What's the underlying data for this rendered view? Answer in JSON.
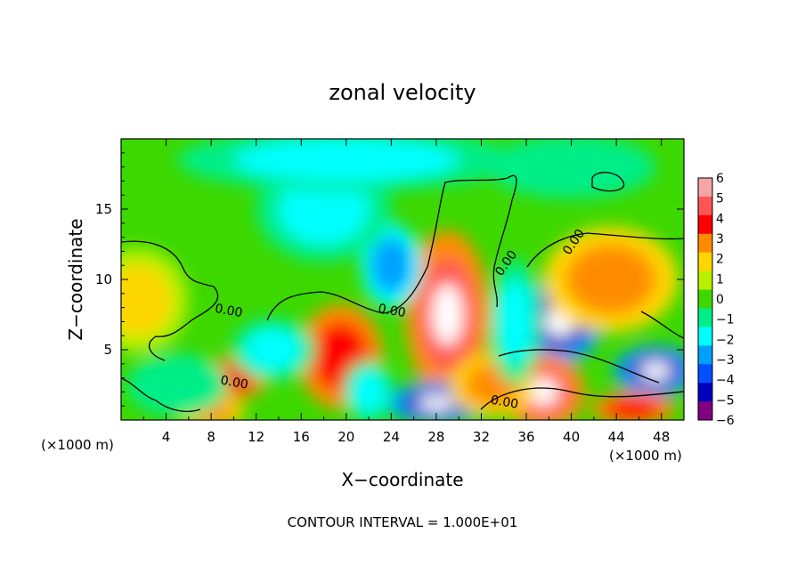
{
  "chart_data": {
    "type": "heatmap",
    "title": "zonal velocity",
    "xlabel": "X−coordinate",
    "ylabel": "Z−coordinate",
    "x_unit_left": "(×1000 m)",
    "x_unit_right": "(×1000 m)",
    "footer": "CONTOUR INTERVAL = 1.000E+01",
    "xlim": [
      0,
      50
    ],
    "ylim": [
      0,
      20
    ],
    "x_ticks": [
      "4",
      "8",
      "12",
      "16",
      "20",
      "24",
      "28",
      "32",
      "36",
      "40",
      "44",
      "48"
    ],
    "y_ticks": [
      "5",
      "10",
      "15"
    ],
    "colorbar": {
      "min": -6,
      "max": 6,
      "labels": [
        "6",
        "5",
        "4",
        "3",
        "2",
        "1",
        "0",
        "−1",
        "−2",
        "−3",
        "−4",
        "−5",
        "−6"
      ],
      "colors": [
        "#f4a6a6",
        "#ff5555",
        "#ff0000",
        "#ff8c00",
        "#ffd700",
        "#b6f000",
        "#3cd800",
        "#00ee88",
        "#00ffff",
        "#00a0ff",
        "#0050ff",
        "#0000c0",
        "#800080"
      ]
    },
    "contour_labels": [
      {
        "text": "0.00",
        "x": 24,
        "y": 7.5
      },
      {
        "text": "0.00",
        "x": 10,
        "y": 2.4
      },
      {
        "text": "0.00",
        "x": 34.5,
        "y": 11
      },
      {
        "text": "0.00",
        "x": 40.5,
        "y": 12.5
      },
      {
        "text": "0.00",
        "x": 34,
        "y": 1
      },
      {
        "text": "0.00",
        "x": 9.5,
        "y": 7.5
      }
    ],
    "features": [
      {
        "x": 29,
        "y": 7.5,
        "value": 6,
        "rx": 2.5,
        "ry": 4
      },
      {
        "x": 19.5,
        "y": 4.5,
        "value": 5,
        "rx": 2.5,
        "ry": 2.5
      },
      {
        "x": 39,
        "y": 7,
        "value": -6,
        "rx": 2.5,
        "ry": 2
      },
      {
        "x": 47.5,
        "y": 3.5,
        "value": -6,
        "rx": 2.5,
        "ry": 1.2
      },
      {
        "x": 43.5,
        "y": 10,
        "value": 3.5,
        "rx": 4,
        "ry": 2.5
      },
      {
        "x": 1.5,
        "y": 8.5,
        "value": 2.5,
        "rx": 3,
        "ry": 2.5
      },
      {
        "x": 24,
        "y": 11,
        "value": -3.5,
        "rx": 1.8,
        "ry": 2
      },
      {
        "x": 18,
        "y": 15,
        "value": -2.5,
        "rx": 4,
        "ry": 2.5
      },
      {
        "x": 20,
        "y": 18.5,
        "value": -2.2,
        "rx": 10,
        "ry": 1.5
      },
      {
        "x": 10,
        "y": 3,
        "value": 5,
        "rx": 2,
        "ry": 1
      },
      {
        "x": 37.5,
        "y": 2,
        "value": 5.5,
        "rx": 2.5,
        "ry": 1.8
      },
      {
        "x": 28,
        "y": 1.2,
        "value": -6,
        "rx": 3,
        "ry": 1
      },
      {
        "x": 8,
        "y": 0.6,
        "value": 4,
        "rx": 2,
        "ry": 0.8
      },
      {
        "x": 45.5,
        "y": 0.8,
        "value": 5,
        "rx": 2.5,
        "ry": 0.8
      },
      {
        "x": 33,
        "y": 2.5,
        "value": 3,
        "rx": 2.5,
        "ry": 1.5
      },
      {
        "x": 13.5,
        "y": 5,
        "value": -1.8,
        "rx": 2.5,
        "ry": 1.5
      },
      {
        "x": 5,
        "y": 2.5,
        "value": -1.5,
        "rx": 3,
        "ry": 1.5
      },
      {
        "x": 22,
        "y": 2,
        "value": -2.5,
        "rx": 1.5,
        "ry": 1.5
      },
      {
        "x": 35,
        "y": 7,
        "value": -2,
        "rx": 1.5,
        "ry": 3
      },
      {
        "x": 40,
        "y": 18,
        "value": -1,
        "rx": 5,
        "ry": 1.5
      }
    ]
  }
}
